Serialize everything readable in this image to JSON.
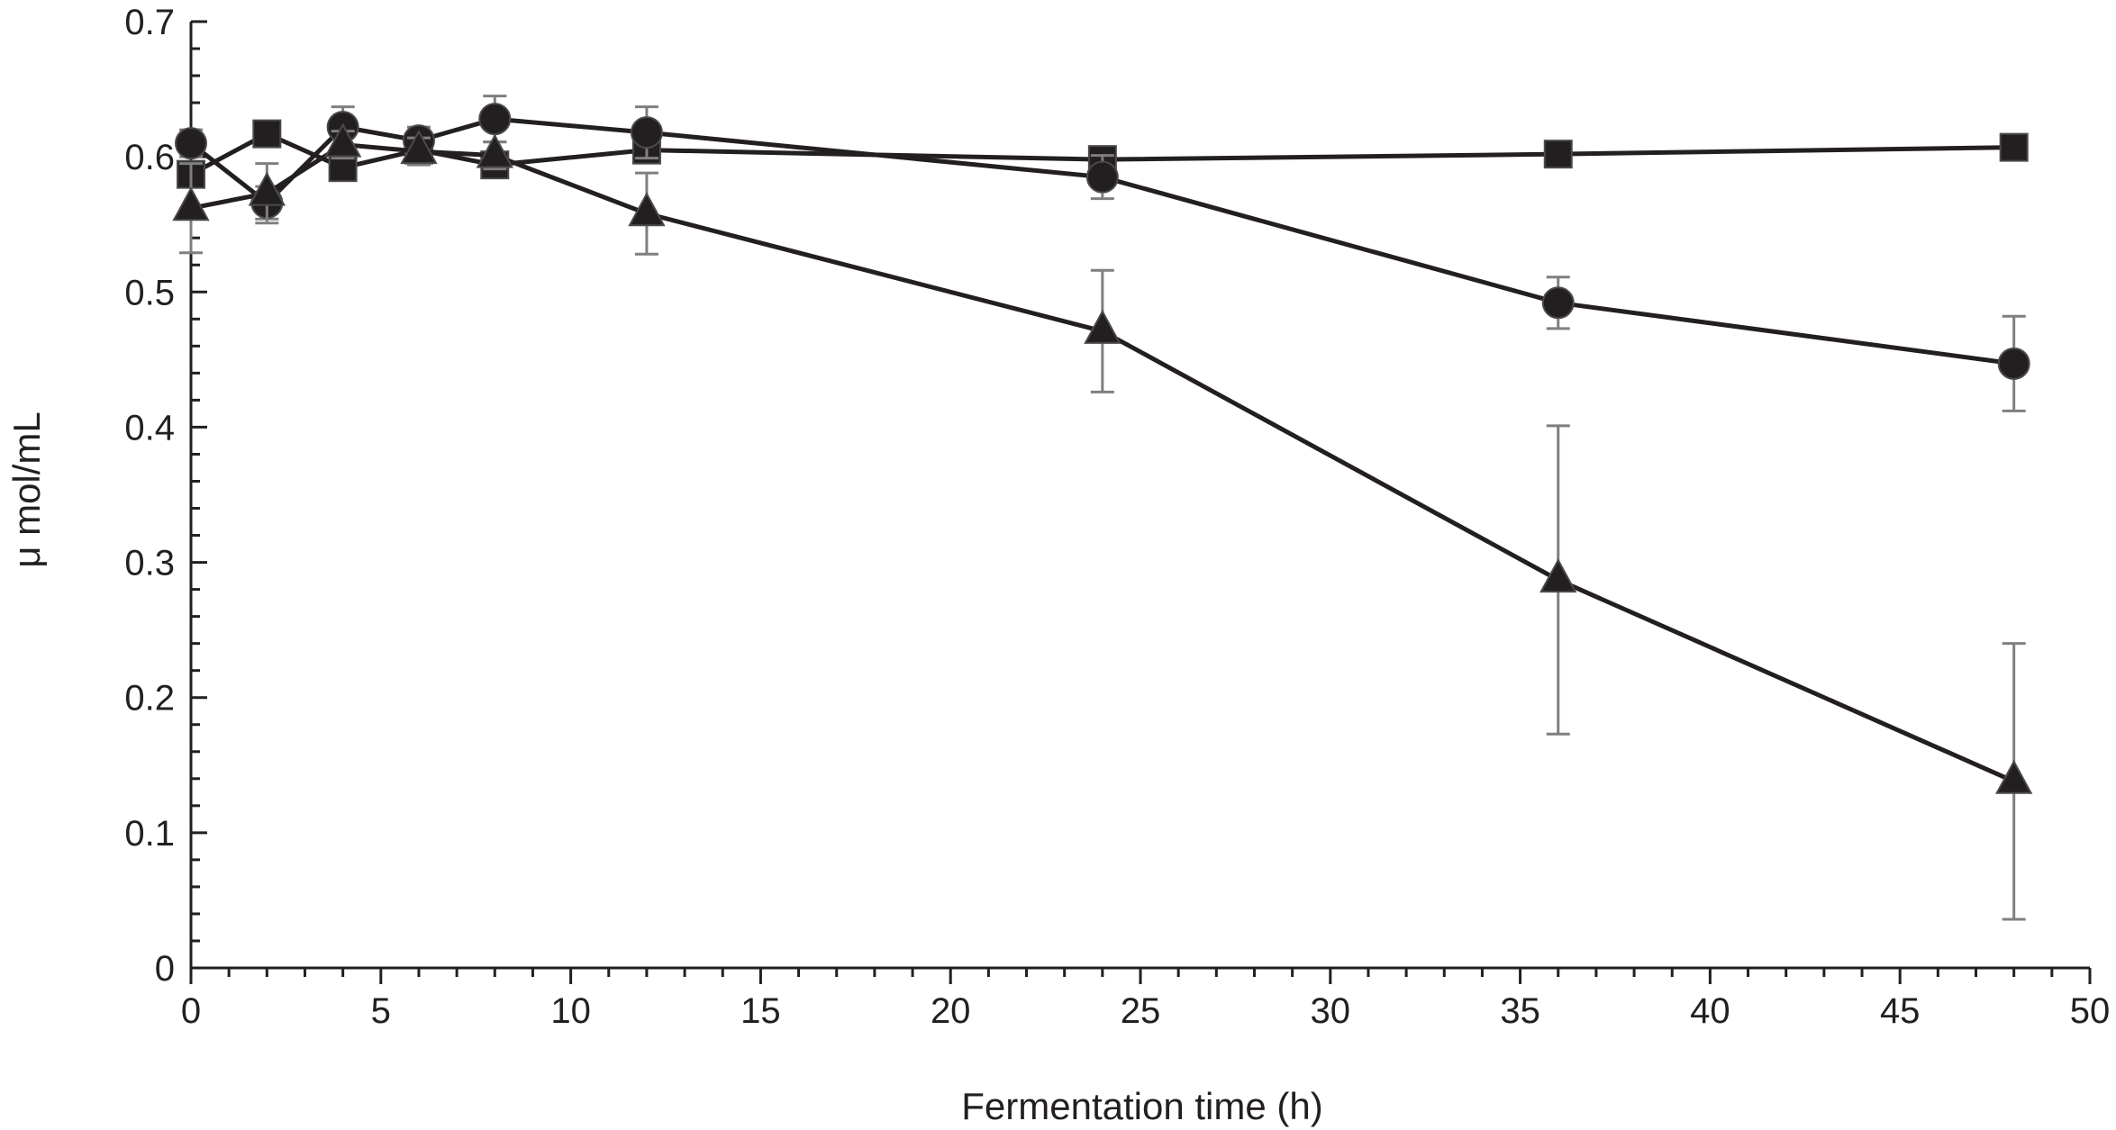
{
  "chart_data": {
    "type": "line",
    "title": "",
    "xlabel": "Fermentation time (h)",
    "ylabel": "μ mol/mL",
    "xlim": [
      0,
      50
    ],
    "ylim": [
      0,
      0.7
    ],
    "grid": false,
    "x_ticks": [
      "0",
      "5",
      "10",
      "15",
      "20",
      "25",
      "30",
      "35",
      "40",
      "45",
      "50"
    ],
    "y_ticks": [
      "0",
      "0.1",
      "0.2",
      "0.3",
      "0.4",
      "0.5",
      "0.6",
      "0.7"
    ],
    "x": [
      0,
      2,
      4,
      6,
      8,
      12,
      24,
      36,
      48
    ],
    "series": [
      {
        "name": "square",
        "marker": "square",
        "values": [
          0.587,
          0.617,
          0.592,
          0.605,
          0.594,
          0.605,
          0.598,
          0.602,
          0.607
        ],
        "errors": [
          0.0,
          0.0,
          0.0,
          0.0,
          0.0,
          0.0,
          0.0,
          0.0,
          0.0
        ]
      },
      {
        "name": "circle",
        "marker": "circle",
        "values": [
          0.61,
          0.566,
          0.622,
          0.612,
          0.628,
          0.618,
          0.585,
          0.492,
          0.447
        ],
        "errors": [
          0.01,
          0.012,
          0.015,
          0.01,
          0.017,
          0.019,
          0.016,
          0.019,
          0.035
        ]
      },
      {
        "name": "triangle",
        "marker": "triangle",
        "values": [
          0.562,
          0.573,
          0.609,
          0.604,
          0.601,
          0.558,
          0.471,
          0.287,
          0.138
        ],
        "errors": [
          0.033,
          0.022,
          0.01,
          0.01,
          0.01,
          0.03,
          0.045,
          0.114,
          0.102
        ]
      }
    ]
  }
}
